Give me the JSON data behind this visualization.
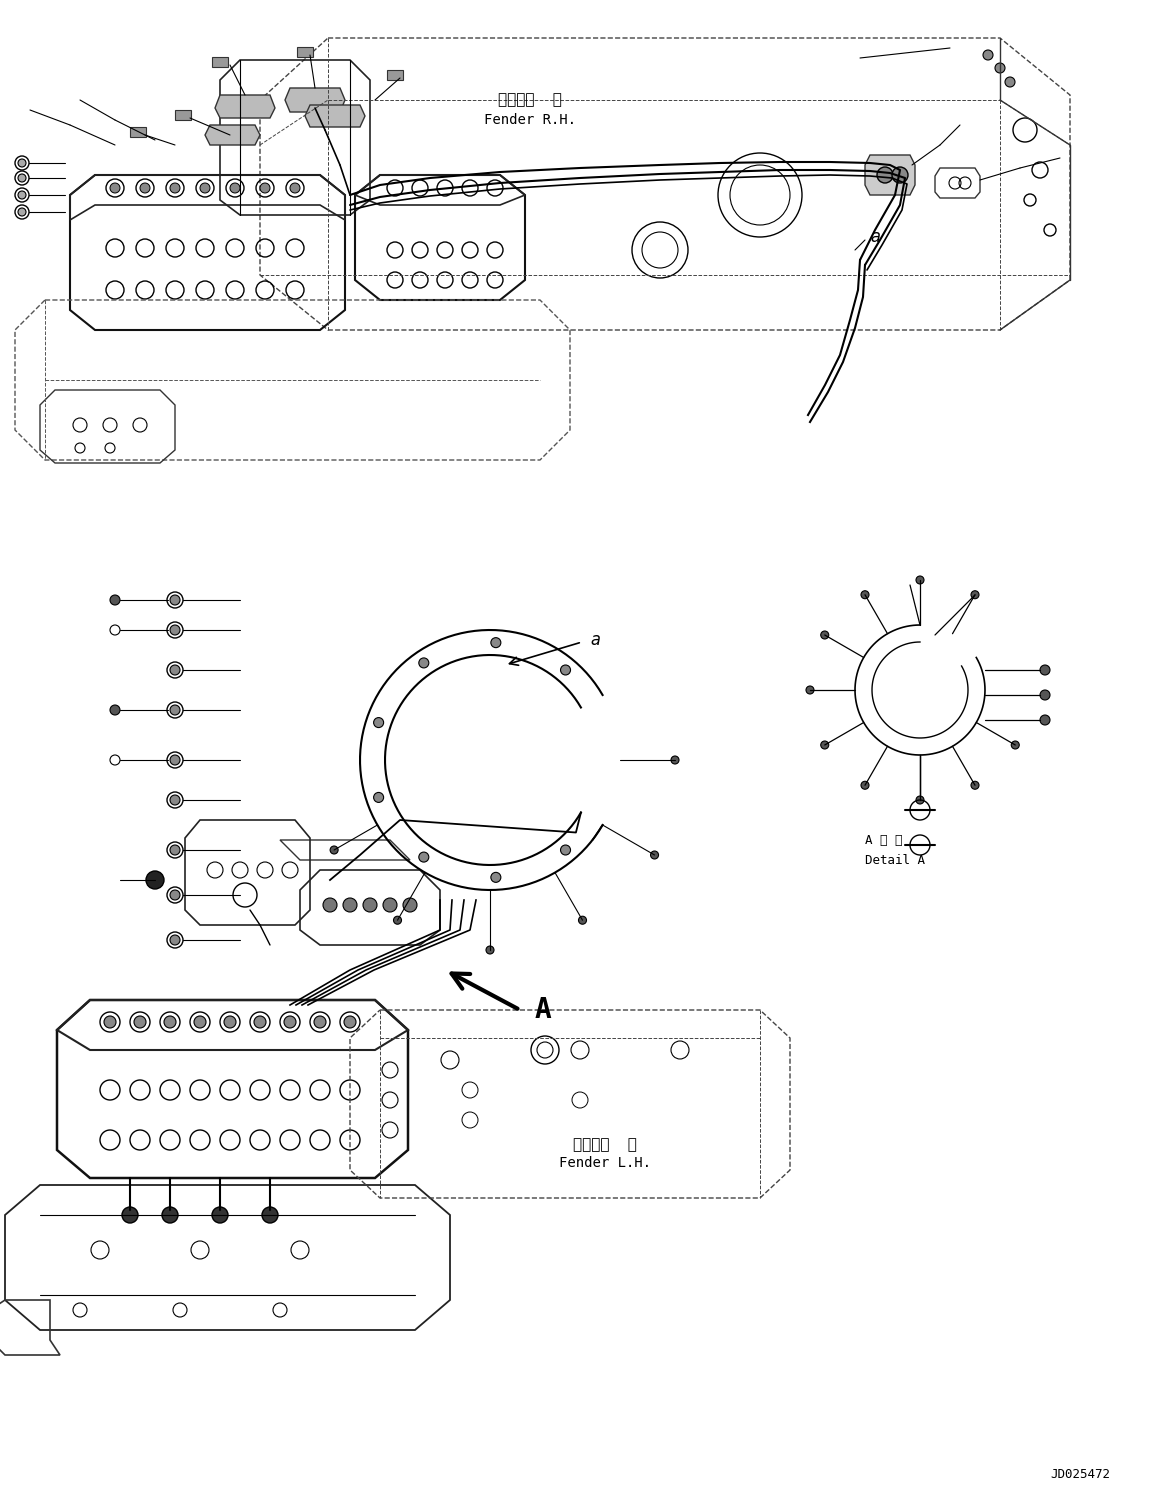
{
  "background_color": "#ffffff",
  "line_color": "#000000",
  "fig_width": 11.53,
  "fig_height": 14.91,
  "dpi": 100,
  "labels": {
    "fender_rh_jp": "フェンダ  右",
    "fender_rh_en": "Fender R.H.",
    "fender_lh_jp": "フェンダ  左",
    "fender_lh_en": "Fender L.H.",
    "detail_a_jp": "A 詳 細",
    "detail_a_en": "Detail A",
    "label_a1": "a",
    "label_a2": "a",
    "label_A": "A",
    "drawing_number": "JD025472"
  }
}
